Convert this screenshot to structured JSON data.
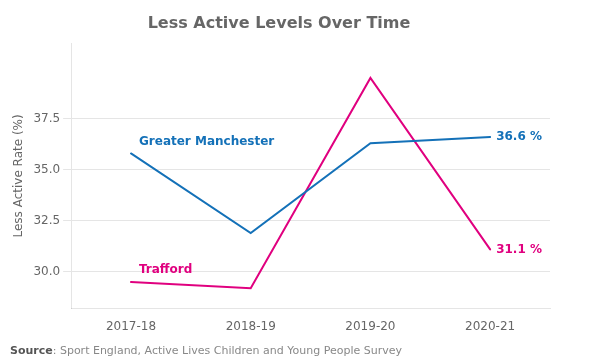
{
  "chart_data": {
    "type": "line",
    "title": "Less Active Levels Over Time",
    "y_label": "Less Active Rate (%)",
    "categories": [
      "2017-18",
      "2018-19",
      "2019-20",
      "2020-21"
    ],
    "series": [
      {
        "name": "Greater Manchester",
        "color": "#1471b8",
        "values": [
          35.8,
          31.9,
          36.3,
          36.6
        ],
        "value_labels": [
          null,
          null,
          null,
          "36.6 %"
        ]
      },
      {
        "name": "Trafford",
        "color": "#e0007f",
        "values": [
          29.5,
          29.2,
          39.5,
          31.1
        ],
        "value_labels": [
          null,
          null,
          null,
          "31.1 %"
        ]
      }
    ],
    "ylim": [
      28.2,
      41.2
    ],
    "yticks": [
      {
        "value": 30.0,
        "label": "30.0"
      },
      32.5,
      {
        "value": 35.0,
        "label": "35.0"
      },
      37.5
    ],
    "grid": true,
    "annotations": [
      "Source: Sport England, Active Lives Children and Young People Survey"
    ]
  }
}
